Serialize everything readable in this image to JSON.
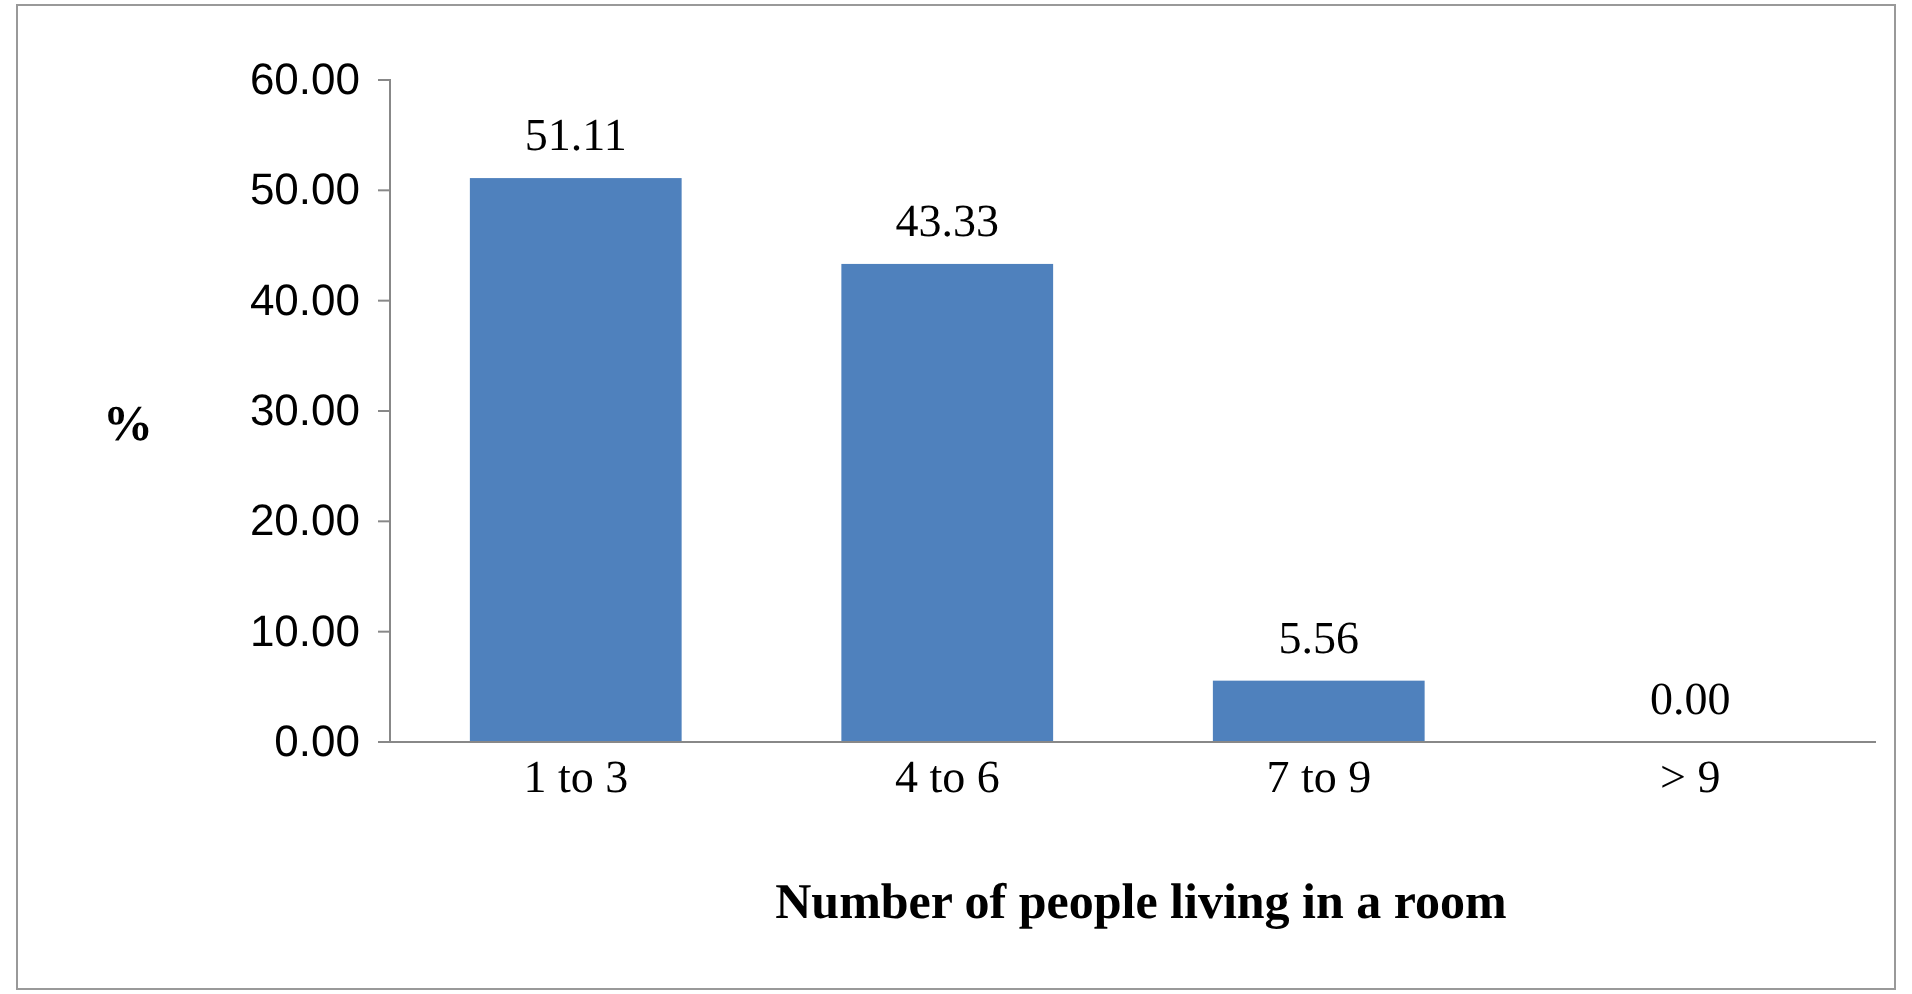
{
  "chart_data": {
    "type": "bar",
    "xlabel": "Number of people living in a room",
    "ylabel": "%",
    "categories": [
      "1 to 3",
      "4 to 6",
      "7 to 9",
      "> 9"
    ],
    "values": [
      51.11,
      43.33,
      5.56,
      0.0
    ],
    "value_labels": [
      "51.11",
      "43.33",
      "5.56",
      "0.00"
    ],
    "color": "#4f81bd",
    "ylim": [
      0,
      60
    ],
    "yticks": [
      {
        "value": 0,
        "label": "0.00"
      },
      {
        "value": 10,
        "label": "10.00"
      },
      {
        "value": 20,
        "label": "20.00"
      },
      {
        "value": 30,
        "label": "30.00"
      },
      {
        "value": 40,
        "label": "40.00"
      },
      {
        "value": 50,
        "label": "50.00"
      },
      {
        "value": 60,
        "label": "60.00"
      }
    ],
    "grid": false
  }
}
